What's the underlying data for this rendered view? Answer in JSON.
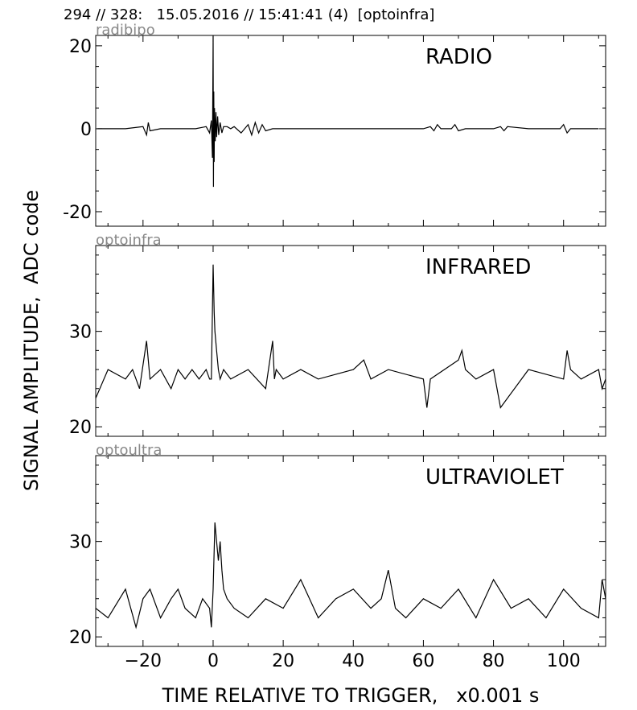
{
  "header": {
    "text": "294 // 328:   15.05.2016 // 15:41:41 (4)  [optoinfra]"
  },
  "chart_data": {
    "type": "line",
    "ylabel": "SIGNAL AMPLITUDE,  ADC code",
    "xlabel": "TIME RELATIVE TO TRIGGER,   x0.001 s",
    "xlim": [
      -33.5,
      112
    ],
    "xticks": [
      -20,
      0,
      20,
      40,
      60,
      80,
      100
    ],
    "xtick_labels": [
      "−20",
      "0",
      "20",
      "40",
      "60",
      "80",
      "100"
    ],
    "panels": [
      {
        "channel": "radibipo",
        "title": "RADIO",
        "ylim": [
          -23.5,
          22.5
        ],
        "yticks": [
          -20,
          0,
          20
        ],
        "ytick_labels": [
          "-20",
          "0",
          "20"
        ],
        "series": [
          {
            "x": [
              -33,
              -25,
              -20,
              -19,
              -18.5,
              -18,
              -15,
              -10,
              -5,
              -2,
              -1,
              -0.5,
              -0.2,
              0,
              0.1,
              0.2,
              0.3,
              0.4,
              0.6,
              0.8,
              1,
              1.3,
              1.6,
              2,
              2.5,
              3,
              4,
              5,
              6,
              8,
              10,
              11,
              12,
              13,
              14,
              15,
              17,
              20,
              30,
              40,
              50,
              60,
              62,
              63,
              64,
              65,
              68,
              69,
              70,
              72,
              80,
              82,
              83,
              84,
              90,
              99,
              100,
              101,
              102,
              105,
              110
            ],
            "y": [
              0,
              0,
              0.5,
              -1.5,
              1.5,
              -0.5,
              0,
              0,
              0,
              0.5,
              -1,
              2,
              -7,
              22.5,
              -14,
              9,
              -8,
              5,
              -3,
              4,
              -2,
              3,
              -1.5,
              1.5,
              -1,
              0.5,
              0.5,
              0,
              0.5,
              -1,
              1,
              -1.5,
              1.5,
              -1,
              1,
              -0.5,
              0,
              0,
              0,
              0,
              0,
              0,
              0.5,
              -0.5,
              1,
              0,
              0,
              1,
              -0.5,
              0,
              0,
              0.5,
              -0.5,
              0.5,
              0,
              0,
              1,
              -1,
              0,
              0,
              0
            ]
          }
        ]
      },
      {
        "channel": "optoinfra",
        "title": "INFRARED",
        "ylim": [
          19,
          39
        ],
        "yticks": [
          20,
          30
        ],
        "ytick_labels": [
          "20",
          "30"
        ],
        "series": [
          {
            "x": [
              -33.5,
              -30,
              -25,
              -23,
              -21,
              -19,
              -18,
              -15,
              -12,
              -10,
              -8,
              -6,
              -4,
              -2,
              -1,
              -0.5,
              0,
              0.3,
              0.5,
              1,
              1.5,
              2,
              3,
              5,
              10,
              15,
              17,
              17.5,
              18,
              20,
              25,
              30,
              40,
              43,
              45,
              50,
              60,
              61,
              62,
              70,
              71,
              72,
              75,
              80,
              82,
              90,
              100,
              101,
              102,
              105,
              110,
              111,
              112
            ],
            "y": [
              23,
              26,
              25,
              26,
              24,
              29,
              25,
              26,
              24,
              26,
              25,
              26,
              25,
              26,
              25,
              25,
              37,
              32,
              30,
              28,
              26,
              25,
              26,
              25,
              26,
              24,
              29,
              25,
              26,
              25,
              26,
              25,
              26,
              27,
              25,
              26,
              25,
              22,
              25,
              27,
              28,
              26,
              25,
              26,
              22,
              26,
              25,
              28,
              26,
              25,
              26,
              24,
              25
            ]
          }
        ]
      },
      {
        "channel": "optoultra",
        "title": "ULTRAVIOLET",
        "ylim": [
          19,
          39
        ],
        "yticks": [
          20,
          30
        ],
        "ytick_labels": [
          "20",
          "30"
        ],
        "series": [
          {
            "x": [
              -33.5,
              -30,
              -25,
              -22,
              -20,
              -18,
              -15,
              -12,
              -10,
              -8,
              -5,
              -3,
              -1,
              -0.5,
              0,
              0.5,
              1,
              1.5,
              2,
              2.5,
              3,
              4,
              6,
              10,
              15,
              20,
              25,
              30,
              35,
              40,
              45,
              48,
              50,
              52,
              55,
              60,
              65,
              70,
              75,
              80,
              85,
              90,
              95,
              100,
              105,
              110,
              111,
              112
            ],
            "y": [
              23,
              22,
              25,
              21,
              24,
              25,
              22,
              24,
              25,
              23,
              22,
              24,
              23,
              21,
              25,
              32,
              30,
              28,
              30,
              27,
              25,
              24,
              23,
              22,
              24,
              23,
              26,
              22,
              24,
              25,
              23,
              24,
              27,
              23,
              22,
              24,
              23,
              25,
              22,
              26,
              23,
              24,
              22,
              25,
              23,
              22,
              26,
              24
            ]
          }
        ]
      }
    ]
  }
}
